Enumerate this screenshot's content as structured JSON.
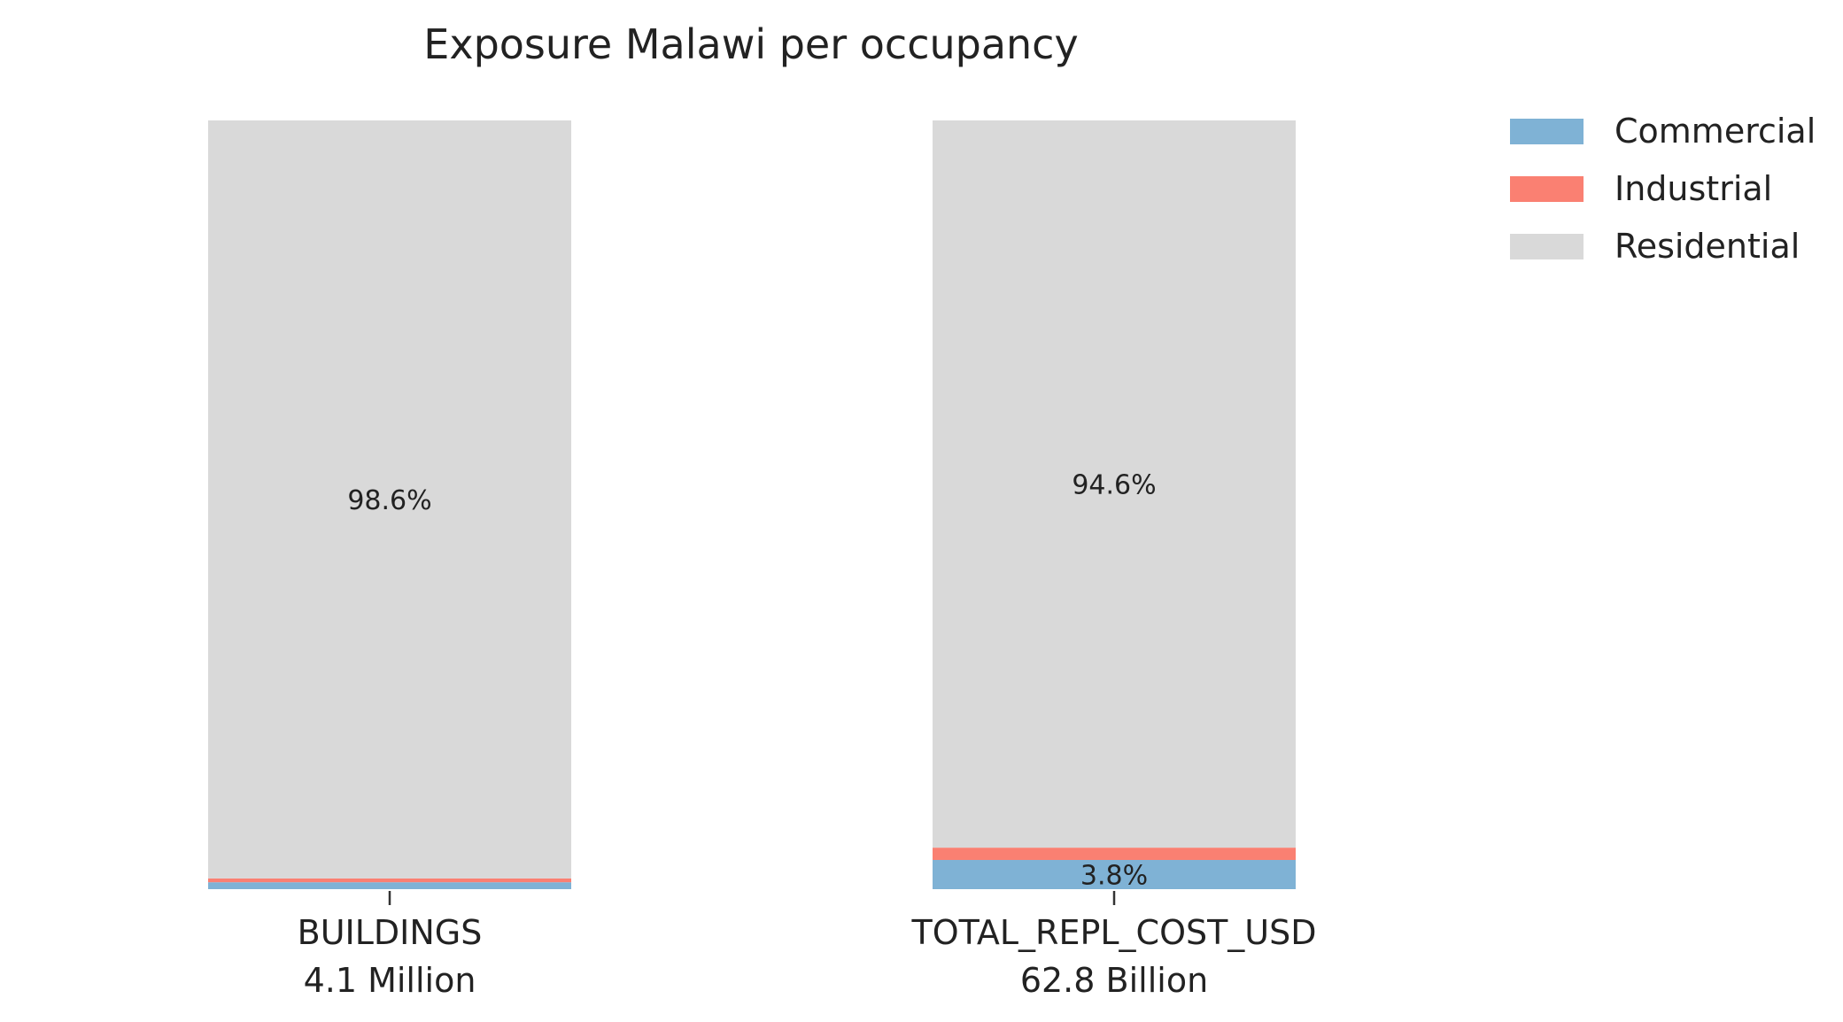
{
  "chart_data": {
    "type": "bar",
    "stacked": true,
    "normalized_percent": true,
    "title": "Exposure Malawi per occupancy",
    "categories": [
      "BUILDINGS",
      "TOTAL_REPL_COST_USD"
    ],
    "category_totals": [
      "4.1 Million",
      "62.8 Billion"
    ],
    "series": [
      {
        "name": "Commercial",
        "color": "#7fb2d5",
        "values": [
          0.9,
          3.8
        ]
      },
      {
        "name": "Industrial",
        "color": "#fa8072",
        "values": [
          0.5,
          1.6
        ]
      },
      {
        "name": "Residential",
        "color": "#d9d9d9",
        "values": [
          98.6,
          94.6
        ]
      }
    ],
    "data_labels": [
      {
        "category": 0,
        "series": 2,
        "text": "98.6%"
      },
      {
        "category": 1,
        "series": 2,
        "text": "94.6%"
      },
      {
        "category": 1,
        "series": 0,
        "text": "3.8%"
      }
    ],
    "ylim": [
      0,
      100
    ],
    "xlabel": "",
    "ylabel": "",
    "grid": false,
    "legend_position": "top-right"
  }
}
